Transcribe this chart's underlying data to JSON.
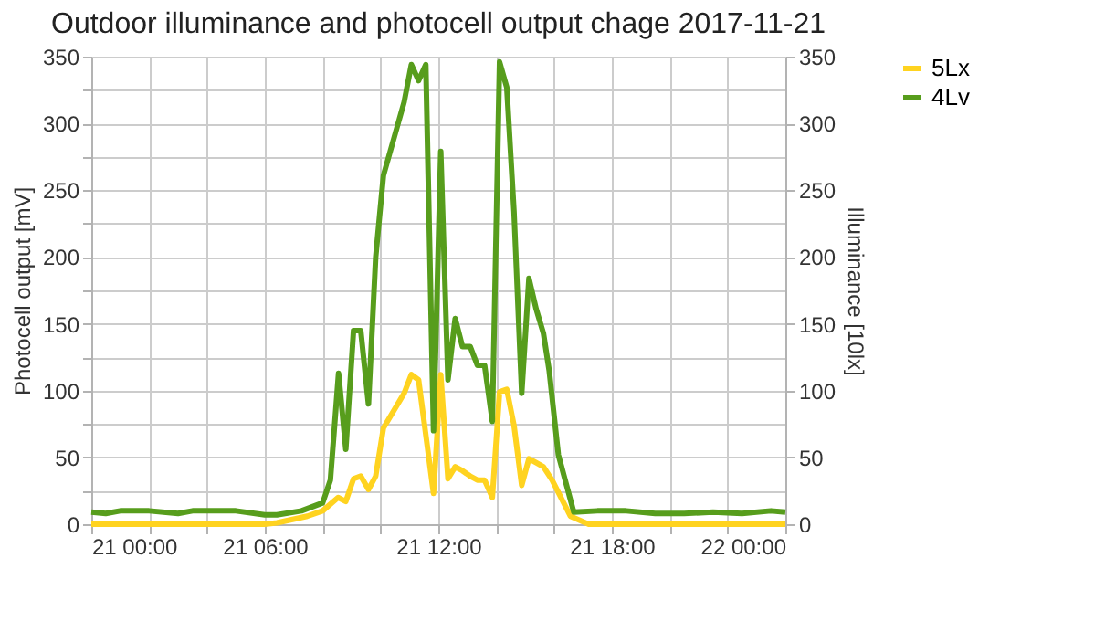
{
  "chart_data": {
    "type": "line",
    "title": "Outdoor illuminance and photocell output chage 2017-11-21",
    "ylabel": "Photocell output [mV]",
    "y2label": "Illuminance [10lx]",
    "xlim": [
      "2017-11-21T00:00",
      "2017-11-22T00:00"
    ],
    "xticks": [
      {
        "value": "2017-11-21T00:00",
        "label": "21 00:00"
      },
      {
        "value": "2017-11-21T02:00",
        "label": null
      },
      {
        "value": "2017-11-21T04:00",
        "label": null
      },
      {
        "value": "2017-11-21T06:00",
        "label": "21 06:00"
      },
      {
        "value": "2017-11-21T08:00",
        "label": null
      },
      {
        "value": "2017-11-21T10:00",
        "label": null
      },
      {
        "value": "2017-11-21T12:00",
        "label": "21 12:00"
      },
      {
        "value": "2017-11-21T14:00",
        "label": null
      },
      {
        "value": "2017-11-21T16:00",
        "label": null
      },
      {
        "value": "2017-11-21T18:00",
        "label": "21 18:00"
      },
      {
        "value": "2017-11-21T20:00",
        "label": null
      },
      {
        "value": "2017-11-21T22:00",
        "label": null
      },
      {
        "value": "2017-11-22T00:00",
        "label": "22 00:00"
      }
    ],
    "ylim": [
      0,
      350
    ],
    "yticks": [
      0,
      {
        "value": 25,
        "label": null
      },
      50,
      {
        "value": 75,
        "label": null
      },
      100,
      {
        "value": 125,
        "label": null
      },
      150,
      {
        "value": 175,
        "label": null
      },
      200,
      {
        "value": 225,
        "label": null
      },
      250,
      {
        "value": 275,
        "label": null
      },
      300,
      {
        "value": 325,
        "label": null
      },
      350
    ],
    "y2lim": [
      0,
      350
    ],
    "y2ticks": [
      0,
      50,
      100,
      150,
      200,
      250,
      300,
      350
    ],
    "grid": true,
    "legend": "right",
    "marker": "none",
    "line_style": "solid",
    "series": [
      {
        "name": "5Lx",
        "color": "#ffd320",
        "axis": "y",
        "x": [
          "2017-11-21T00:00",
          "2017-11-21T06:00",
          "2017-11-21T06:25",
          "2017-11-21T07:28",
          "2017-11-21T08:00",
          "2017-11-21T08:32",
          "2017-11-21T08:48",
          "2017-11-21T09:04",
          "2017-11-21T09:19",
          "2017-11-21T09:35",
          "2017-11-21T09:50",
          "2017-11-21T10:06",
          "2017-11-21T10:49",
          "2017-11-21T11:04",
          "2017-11-21T11:19",
          "2017-11-21T11:50",
          "2017-11-21T12:05",
          "2017-11-21T12:20",
          "2017-11-21T12:35",
          "2017-11-21T12:50",
          "2017-11-21T13:06",
          "2017-11-21T13:21",
          "2017-11-21T13:36",
          "2017-11-21T13:52",
          "2017-11-21T14:07",
          "2017-11-21T14:22",
          "2017-11-21T14:37",
          "2017-11-21T14:53",
          "2017-11-21T15:08",
          "2017-11-21T15:23",
          "2017-11-21T15:38",
          "2017-11-21T15:56",
          "2017-11-21T16:34",
          "2017-11-21T17:12",
          "2017-11-22T00:00"
        ],
        "values": [
          0,
          0,
          1,
          6,
          10,
          20,
          17,
          34,
          36,
          26,
          36,
          72,
          98,
          112,
          108,
          23,
          112,
          34,
          43,
          40,
          36,
          33,
          33,
          20,
          99,
          101,
          74,
          29,
          49,
          46,
          43,
          33,
          6,
          0,
          0
        ]
      },
      {
        "name": "4Lv",
        "color": "#579d1c",
        "axis": "y2",
        "x": [
          "2017-11-21T00:00",
          "2017-11-21T00:30",
          "2017-11-21T01:00",
          "2017-11-21T02:00",
          "2017-11-21T03:00",
          "2017-11-21T03:30",
          "2017-11-21T04:00",
          "2017-11-21T05:00",
          "2017-11-21T06:00",
          "2017-11-21T06:25",
          "2017-11-21T07:16",
          "2017-11-21T08:00",
          "2017-11-21T08:16",
          "2017-11-21T08:33",
          "2017-11-21T08:48",
          "2017-11-21T09:04",
          "2017-11-21T09:19",
          "2017-11-21T09:35",
          "2017-11-21T09:50",
          "2017-11-21T10:06",
          "2017-11-21T10:49",
          "2017-11-21T11:04",
          "2017-11-21T11:19",
          "2017-11-21T11:34",
          "2017-11-21T11:50",
          "2017-11-21T12:05",
          "2017-11-21T12:20",
          "2017-11-21T12:35",
          "2017-11-21T12:50",
          "2017-11-21T13:06",
          "2017-11-21T13:21",
          "2017-11-21T13:36",
          "2017-11-21T13:52",
          "2017-11-21T14:07",
          "2017-11-21T14:22",
          "2017-11-21T14:37",
          "2017-11-21T14:53",
          "2017-11-21T15:08",
          "2017-11-21T15:23",
          "2017-11-21T15:38",
          "2017-11-21T15:50",
          "2017-11-21T16:09",
          "2017-11-21T16:41",
          "2017-11-21T17:30",
          "2017-11-21T18:30",
          "2017-11-21T19:30",
          "2017-11-21T20:30",
          "2017-11-21T21:30",
          "2017-11-21T22:30",
          "2017-11-21T23:30",
          "2017-11-22T00:00"
        ],
        "values": [
          9,
          8,
          10,
          10,
          8,
          10,
          10,
          10,
          7,
          7,
          10,
          16,
          33,
          113,
          56,
          145,
          145,
          90,
          200,
          261,
          316,
          344,
          332,
          344,
          70,
          279,
          108,
          154,
          133,
          133,
          119,
          119,
          77,
          346,
          327,
          234,
          98,
          184,
          161,
          143,
          115,
          52,
          9,
          10,
          10,
          8,
          8,
          9,
          8,
          10,
          9
        ]
      }
    ]
  }
}
